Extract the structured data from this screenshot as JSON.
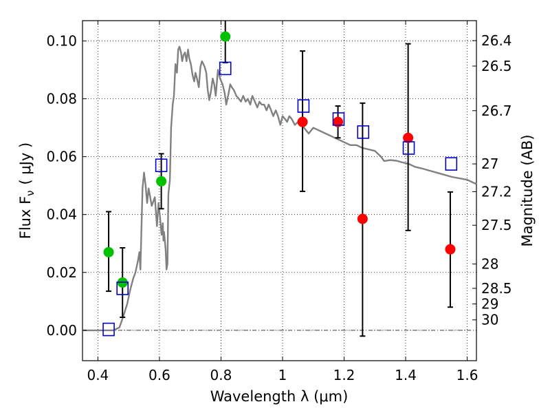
{
  "chart_data": {
    "type": "scatter",
    "xlabel": "Wavelength  λ (μm)",
    "ylabel": "Flux  F",
    "ylabel_sub": "ν",
    "ylabel_unit": "( μJy )",
    "right_ylabel": "Magnitude (AB)",
    "xlim": [
      0.35,
      1.63
    ],
    "ylim": [
      -0.0105,
      0.107
    ],
    "grid": true,
    "x_ticks": [
      {
        "value": 0.4,
        "label": "0.4"
      },
      {
        "value": 0.6,
        "label": "0.6"
      },
      {
        "value": 0.8,
        "label": "0.8"
      },
      {
        "value": 1.0,
        "label": "1"
      },
      {
        "value": 1.2,
        "label": "1.2"
      },
      {
        "value": 1.4,
        "label": "1.4"
      },
      {
        "value": 1.6,
        "label": "1.6"
      }
    ],
    "y_ticks": [
      {
        "value": 0.0,
        "label": "0.00"
      },
      {
        "value": 0.02,
        "label": "0.02"
      },
      {
        "value": 0.04,
        "label": "0.04"
      },
      {
        "value": 0.06,
        "label": "0.06"
      },
      {
        "value": 0.08,
        "label": "0.08"
      },
      {
        "value": 0.1,
        "label": "0.10"
      }
    ],
    "magnitude_ticks": [
      {
        "label": "26.4",
        "flux": 0.1001
      },
      {
        "label": "26.5",
        "flux": 0.0913
      },
      {
        "label": "26.7",
        "flux": 0.0759
      },
      {
        "label": "27",
        "flux": 0.0575
      },
      {
        "label": "27.2",
        "flux": 0.0479
      },
      {
        "label": "27.5",
        "flux": 0.0363
      },
      {
        "label": "28",
        "flux": 0.0229
      },
      {
        "label": "28.5",
        "flux": 0.0145
      },
      {
        "label": "29",
        "flux": 0.0091
      },
      {
        "label": "30",
        "flux": 0.0036
      }
    ],
    "series": [
      {
        "name": "model SED",
        "kind": "line",
        "color": "#808080",
        "x": [
          0.35,
          0.45,
          0.47,
          0.48,
          0.495,
          0.505,
          0.515,
          0.522,
          0.53,
          0.535,
          0.538,
          0.545,
          0.55,
          0.555,
          0.56,
          0.565,
          0.57,
          0.575,
          0.585,
          0.592,
          0.597,
          0.602,
          0.607,
          0.611,
          0.613,
          0.615,
          0.62,
          0.623,
          0.626,
          0.629,
          0.632,
          0.634,
          0.638,
          0.643,
          0.647,
          0.652,
          0.657,
          0.661,
          0.665,
          0.67,
          0.674,
          0.678,
          0.683,
          0.688,
          0.693,
          0.697,
          0.702,
          0.708,
          0.713,
          0.717,
          0.722,
          0.728,
          0.733,
          0.738,
          0.743,
          0.747,
          0.752,
          0.757,
          0.762,
          0.768,
          0.773,
          0.778,
          0.783,
          0.79,
          0.797,
          0.805,
          0.812,
          0.817,
          0.821,
          0.825,
          0.83,
          0.835,
          0.842,
          0.85,
          0.858,
          0.865,
          0.872,
          0.88,
          0.887,
          0.895,
          0.902,
          0.91,
          0.918,
          0.925,
          0.932,
          0.94,
          0.948,
          0.955,
          0.963,
          0.97,
          0.978,
          0.985,
          0.993,
          1.0,
          1.008,
          1.015,
          1.022,
          1.03,
          1.04,
          1.05,
          1.06,
          1.07,
          1.085,
          1.1,
          1.12,
          1.14,
          1.16,
          1.18,
          1.2,
          1.22,
          1.24,
          1.26,
          1.3,
          1.32,
          1.33,
          1.35,
          1.37,
          1.39,
          1.41,
          1.43,
          1.45,
          1.5,
          1.55,
          1.6,
          1.63
        ],
        "y": [
          0.0,
          0.0,
          0.001,
          0.004,
          0.009,
          0.014,
          0.018,
          0.02,
          0.024,
          0.027,
          0.021,
          0.049,
          0.0545,
          0.05,
          0.044,
          0.049,
          0.046,
          0.043,
          0.046,
          0.036,
          0.044,
          0.039,
          0.033,
          0.037,
          0.031,
          0.034,
          0.028,
          0.021,
          0.023,
          0.047,
          0.05,
          0.052,
          0.07,
          0.078,
          0.081,
          0.092,
          0.089,
          0.097,
          0.098,
          0.096,
          0.093,
          0.095,
          0.096,
          0.093,
          0.097,
          0.094,
          0.092,
          0.088,
          0.086,
          0.089,
          0.087,
          0.084,
          0.091,
          0.093,
          0.092,
          0.091,
          0.089,
          0.083,
          0.0795,
          0.083,
          0.087,
          0.085,
          0.081,
          0.09,
          0.087,
          0.085,
          0.082,
          0.078,
          0.08,
          0.082,
          0.085,
          0.084,
          0.083,
          0.081,
          0.08,
          0.079,
          0.081,
          0.079,
          0.08,
          0.078,
          0.081,
          0.079,
          0.077,
          0.079,
          0.078,
          0.078,
          0.076,
          0.078,
          0.076,
          0.074,
          0.076,
          0.074,
          0.071,
          0.074,
          0.073,
          0.072,
          0.074,
          0.073,
          0.071,
          0.072,
          0.071,
          0.07,
          0.068,
          0.07,
          0.069,
          0.068,
          0.067,
          0.066,
          0.065,
          0.064,
          0.064,
          0.063,
          0.062,
          0.06,
          0.0585,
          0.0588,
          0.0586,
          0.058,
          0.0575,
          0.0565,
          0.056,
          0.0545,
          0.053,
          0.052,
          0.0505
        ]
      },
      {
        "name": "green observations",
        "kind": "points",
        "marker": "circle",
        "color": "#00c000",
        "x": [
          0.435,
          0.48,
          0.606,
          0.814
        ],
        "y": [
          0.027,
          0.0165,
          0.0515,
          0.1015
        ],
        "yerr_low": [
          0.0135,
          0.0045,
          0.042,
          0.0925
        ],
        "yerr_high": [
          0.041,
          0.0285,
          0.061,
          0.108
        ]
      },
      {
        "name": "red observations",
        "kind": "points",
        "marker": "circle",
        "color": "#ff0000",
        "x": [
          1.065,
          1.18,
          1.26,
          1.408,
          1.545
        ],
        "y": [
          0.072,
          0.072,
          0.0385,
          0.0665,
          0.028
        ],
        "yerr_low": [
          0.048,
          0.0665,
          -0.002,
          0.0345,
          0.008
        ],
        "yerr_high": [
          0.0965,
          0.0775,
          0.0785,
          0.099,
          0.0478
        ]
      },
      {
        "name": "model photometry",
        "kind": "points",
        "marker": "square",
        "color": "#0000cc",
        "x": [
          0.435,
          0.48,
          0.606,
          0.814,
          1.068,
          1.182,
          1.262,
          1.41,
          1.548
        ],
        "y": [
          0.0003,
          0.0145,
          0.057,
          0.0905,
          0.0775,
          0.073,
          0.0685,
          0.063,
          0.0575
        ]
      }
    ]
  }
}
